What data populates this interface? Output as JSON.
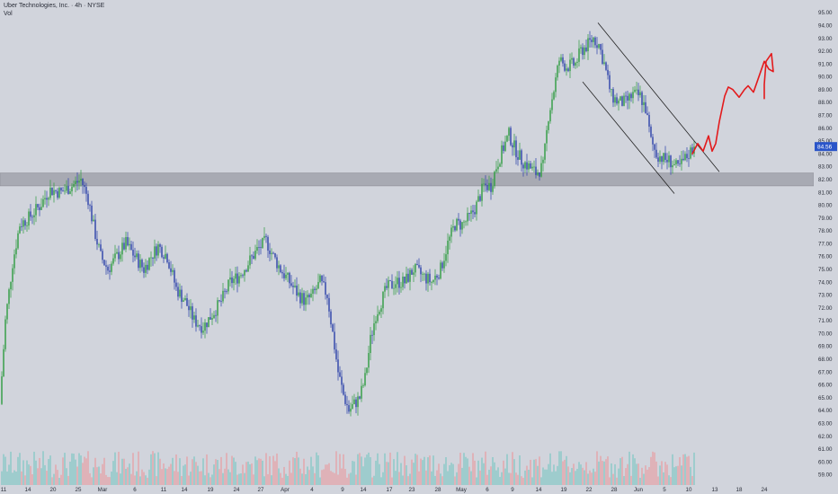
{
  "header": {
    "title": "Uber Technologies, Inc. · 4h · NYSE",
    "volume_label": "Vol"
  },
  "colors": {
    "background": "#d1d4dc",
    "up": "#2e9c3f",
    "down": "#2a3fa8",
    "vol_up": "#7cc7c3",
    "vol_down": "#e89ba1",
    "zone": "#a8aab3",
    "price_tag": "#2a55c9",
    "drawing": "#e31a1c",
    "channel": "#222222"
  },
  "chart_data": {
    "type": "candlestick",
    "title": "Uber Technologies, Inc. · 4h · NYSE",
    "ylim": [
      58.5,
      95.5
    ],
    "y_ticks": [
      59,
      60,
      61,
      62,
      63,
      64,
      65,
      66,
      67,
      68,
      69,
      70,
      71,
      72,
      73,
      74,
      75,
      76,
      77,
      78,
      79,
      80,
      81,
      82,
      83,
      84,
      85,
      86,
      87,
      88,
      89,
      90,
      91,
      92,
      93,
      94,
      95
    ],
    "y_tick_labels": [
      "59.00",
      "60.00",
      "61.00",
      "62.00",
      "63.00",
      "64.00",
      "65.00",
      "66.00",
      "67.00",
      "68.00",
      "69.00",
      "70.00",
      "71.00",
      "72.00",
      "73.00",
      "74.00",
      "75.00",
      "76.00",
      "77.00",
      "78.00",
      "79.00",
      "80.00",
      "81.00",
      "82.00",
      "83.00",
      "84.00",
      "85.00",
      "86.00",
      "87.00",
      "88.00",
      "89.00",
      "90.00",
      "91.00",
      "92.00",
      "93.00",
      "94.00",
      "95.00"
    ],
    "x_tick_labels": [
      "11",
      "14",
      "20",
      "25",
      "Mar",
      "6",
      "11",
      "14",
      "19",
      "24",
      "27",
      "Apr",
      "4",
      "9",
      "14",
      "17",
      "23",
      "28",
      "May",
      "6",
      "9",
      "14",
      "19",
      "22",
      "28",
      "Jun",
      "5",
      "10",
      "13",
      "18",
      "24"
    ],
    "last_price": "84.56",
    "grid": false,
    "legend": "none",
    "price_path": [
      [
        0,
        64.5
      ],
      [
        6,
        71
      ],
      [
        14,
        75.5
      ],
      [
        22,
        78.5
      ],
      [
        32,
        79
      ],
      [
        45,
        80
      ],
      [
        55,
        81.2
      ],
      [
        68,
        81
      ],
      [
        80,
        81.5
      ],
      [
        90,
        82
      ],
      [
        98,
        80.5
      ],
      [
        105,
        78
      ],
      [
        112,
        76
      ],
      [
        120,
        75
      ],
      [
        130,
        76
      ],
      [
        140,
        77
      ],
      [
        150,
        76
      ],
      [
        160,
        75
      ],
      [
        168,
        76
      ],
      [
        176,
        76.8
      ],
      [
        186,
        76
      ],
      [
        196,
        73.5
      ],
      [
        206,
        72.5
      ],
      [
        216,
        71
      ],
      [
        226,
        70.5
      ],
      [
        236,
        71.5
      ],
      [
        246,
        72.5
      ],
      [
        256,
        74
      ],
      [
        266,
        74.5
      ],
      [
        276,
        75.5
      ],
      [
        286,
        76.5
      ],
      [
        296,
        77.2
      ],
      [
        304,
        76
      ],
      [
        312,
        75
      ],
      [
        322,
        74
      ],
      [
        332,
        73
      ],
      [
        340,
        72.5
      ],
      [
        348,
        73
      ],
      [
        356,
        74
      ],
      [
        364,
        73
      ],
      [
        370,
        70
      ],
      [
        376,
        67
      ],
      [
        382,
        65.2
      ],
      [
        388,
        64
      ],
      [
        394,
        64.5
      ],
      [
        400,
        65
      ],
      [
        406,
        66.5
      ],
      [
        412,
        69.5
      ],
      [
        418,
        71.5
      ],
      [
        424,
        72.5
      ],
      [
        430,
        73.5
      ],
      [
        440,
        74
      ],
      [
        450,
        74
      ],
      [
        460,
        75
      ],
      [
        470,
        74.5
      ],
      [
        480,
        74
      ],
      [
        490,
        75
      ],
      [
        498,
        77
      ],
      [
        506,
        78.5
      ],
      [
        514,
        78.5
      ],
      [
        522,
        79
      ],
      [
        530,
        80
      ],
      [
        538,
        81.5
      ],
      [
        546,
        81.5
      ],
      [
        552,
        83
      ],
      [
        560,
        84.5
      ],
      [
        566,
        85.5
      ],
      [
        572,
        84.5
      ],
      [
        580,
        83.5
      ],
      [
        588,
        83
      ],
      [
        596,
        82.5
      ],
      [
        604,
        83
      ],
      [
        610,
        87
      ],
      [
        616,
        89
      ],
      [
        622,
        91.3
      ],
      [
        630,
        90.8
      ],
      [
        640,
        91
      ],
      [
        646,
        92
      ],
      [
        654,
        92.5
      ],
      [
        660,
        93
      ],
      [
        666,
        92.5
      ],
      [
        672,
        91
      ],
      [
        680,
        88.5
      ],
      [
        688,
        88
      ],
      [
        696,
        88
      ],
      [
        704,
        88.6
      ],
      [
        712,
        88.5
      ],
      [
        718,
        87.5
      ],
      [
        724,
        85
      ],
      [
        730,
        84
      ],
      [
        738,
        83.6
      ],
      [
        746,
        83.4
      ],
      [
        754,
        82.8
      ],
      [
        760,
        83.4
      ],
      [
        766,
        84
      ],
      [
        772,
        84.56
      ]
    ],
    "zone_band": [
      81.5,
      82.5
    ],
    "channel_upper": [
      [
        665,
        94.2
      ],
      [
        800,
        82.6
      ]
    ],
    "channel_lower": [
      [
        648,
        89.6
      ],
      [
        750,
        80.9
      ]
    ],
    "projection": [
      [
        770,
        84
      ],
      [
        776,
        84.8
      ],
      [
        782,
        84.2
      ],
      [
        788,
        85.4
      ],
      [
        792,
        84.2
      ],
      [
        796,
        84.8
      ],
      [
        800,
        86.5
      ],
      [
        806,
        88.5
      ],
      [
        810,
        89.2
      ],
      [
        815,
        89
      ],
      [
        822,
        88.4
      ],
      [
        828,
        89
      ],
      [
        832,
        89.3
      ],
      [
        838,
        88.8
      ],
      [
        842,
        89.6
      ],
      [
        846,
        90.4
      ],
      [
        850,
        91.2
      ],
      [
        855,
        90.6
      ],
      [
        860,
        90.4
      ],
      [
        858,
        91.8
      ],
      [
        852,
        91.2
      ],
      [
        850,
        89.4
      ],
      [
        850,
        88.3
      ]
    ]
  }
}
